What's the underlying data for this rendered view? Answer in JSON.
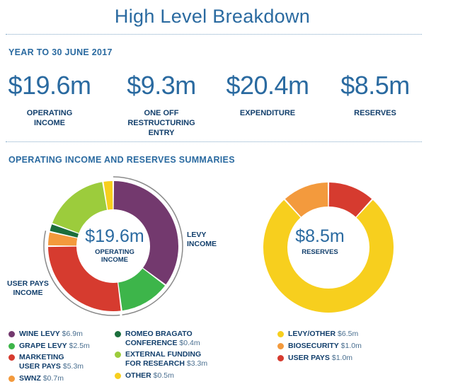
{
  "title": "High Level Breakdown",
  "year_header": "YEAR TO 30 JUNE 2017",
  "stats": [
    {
      "value": "$19.6m",
      "label": "OPERATING\nINCOME"
    },
    {
      "value": "$9.3m",
      "label": "ONE OFF\nRESTRUCTURING\nENTRY"
    },
    {
      "value": "$20.4m",
      "label": "EXPENDITURE"
    },
    {
      "value": "$8.5m",
      "label": "RESERVES"
    }
  ],
  "summary_header": "OPERATING INCOME AND RESERVES SUMMARIES",
  "annotations": {
    "levy": "LEVY\nINCOME",
    "user_pays": "USER PAYS\nINCOME"
  },
  "chart_data": [
    {
      "type": "pie",
      "center_value": "$19.6m",
      "center_label": "OPERATING\nINCOME",
      "slices": [
        {
          "name": "WINE LEVY",
          "amount": "$6.9m",
          "value": 6.9,
          "color": "#73396e"
        },
        {
          "name": "GRAPE LEVY",
          "amount": "$2.5m",
          "value": 2.5,
          "color": "#3db54a"
        },
        {
          "name": "MARKETING\nUSER PAYS",
          "amount": "$5.3m",
          "value": 5.3,
          "color": "#d63b2f"
        },
        {
          "name": "SWNZ",
          "amount": "$0.7m",
          "value": 0.7,
          "color": "#f39a3d"
        },
        {
          "name": "ROMEO BRAGATO\nCONFERENCE",
          "amount": "$0.4m",
          "value": 0.4,
          "color": "#1b6e3c"
        },
        {
          "name": "EXTERNAL FUNDING\nFOR RESEARCH",
          "amount": "$3.3m",
          "value": 3.3,
          "color": "#9ccc3c"
        },
        {
          "name": "OTHER",
          "amount": "$0.5m",
          "value": 0.5,
          "color": "#f7cf1e"
        }
      ]
    },
    {
      "type": "pie",
      "center_value": "$8.5m",
      "center_label": "RESERVES",
      "slices": [
        {
          "name": "USER PAYS",
          "amount": "$1.0m",
          "value": 1.0,
          "color": "#d63b2f"
        },
        {
          "name": "LEVY/OTHER",
          "amount": "$6.5m",
          "value": 6.5,
          "color": "#f7cf1e"
        },
        {
          "name": "BIOSECURITY",
          "amount": "$1.0m",
          "value": 1.0,
          "color": "#f39a3d"
        }
      ],
      "legend_order": [
        1,
        2,
        0
      ]
    }
  ]
}
